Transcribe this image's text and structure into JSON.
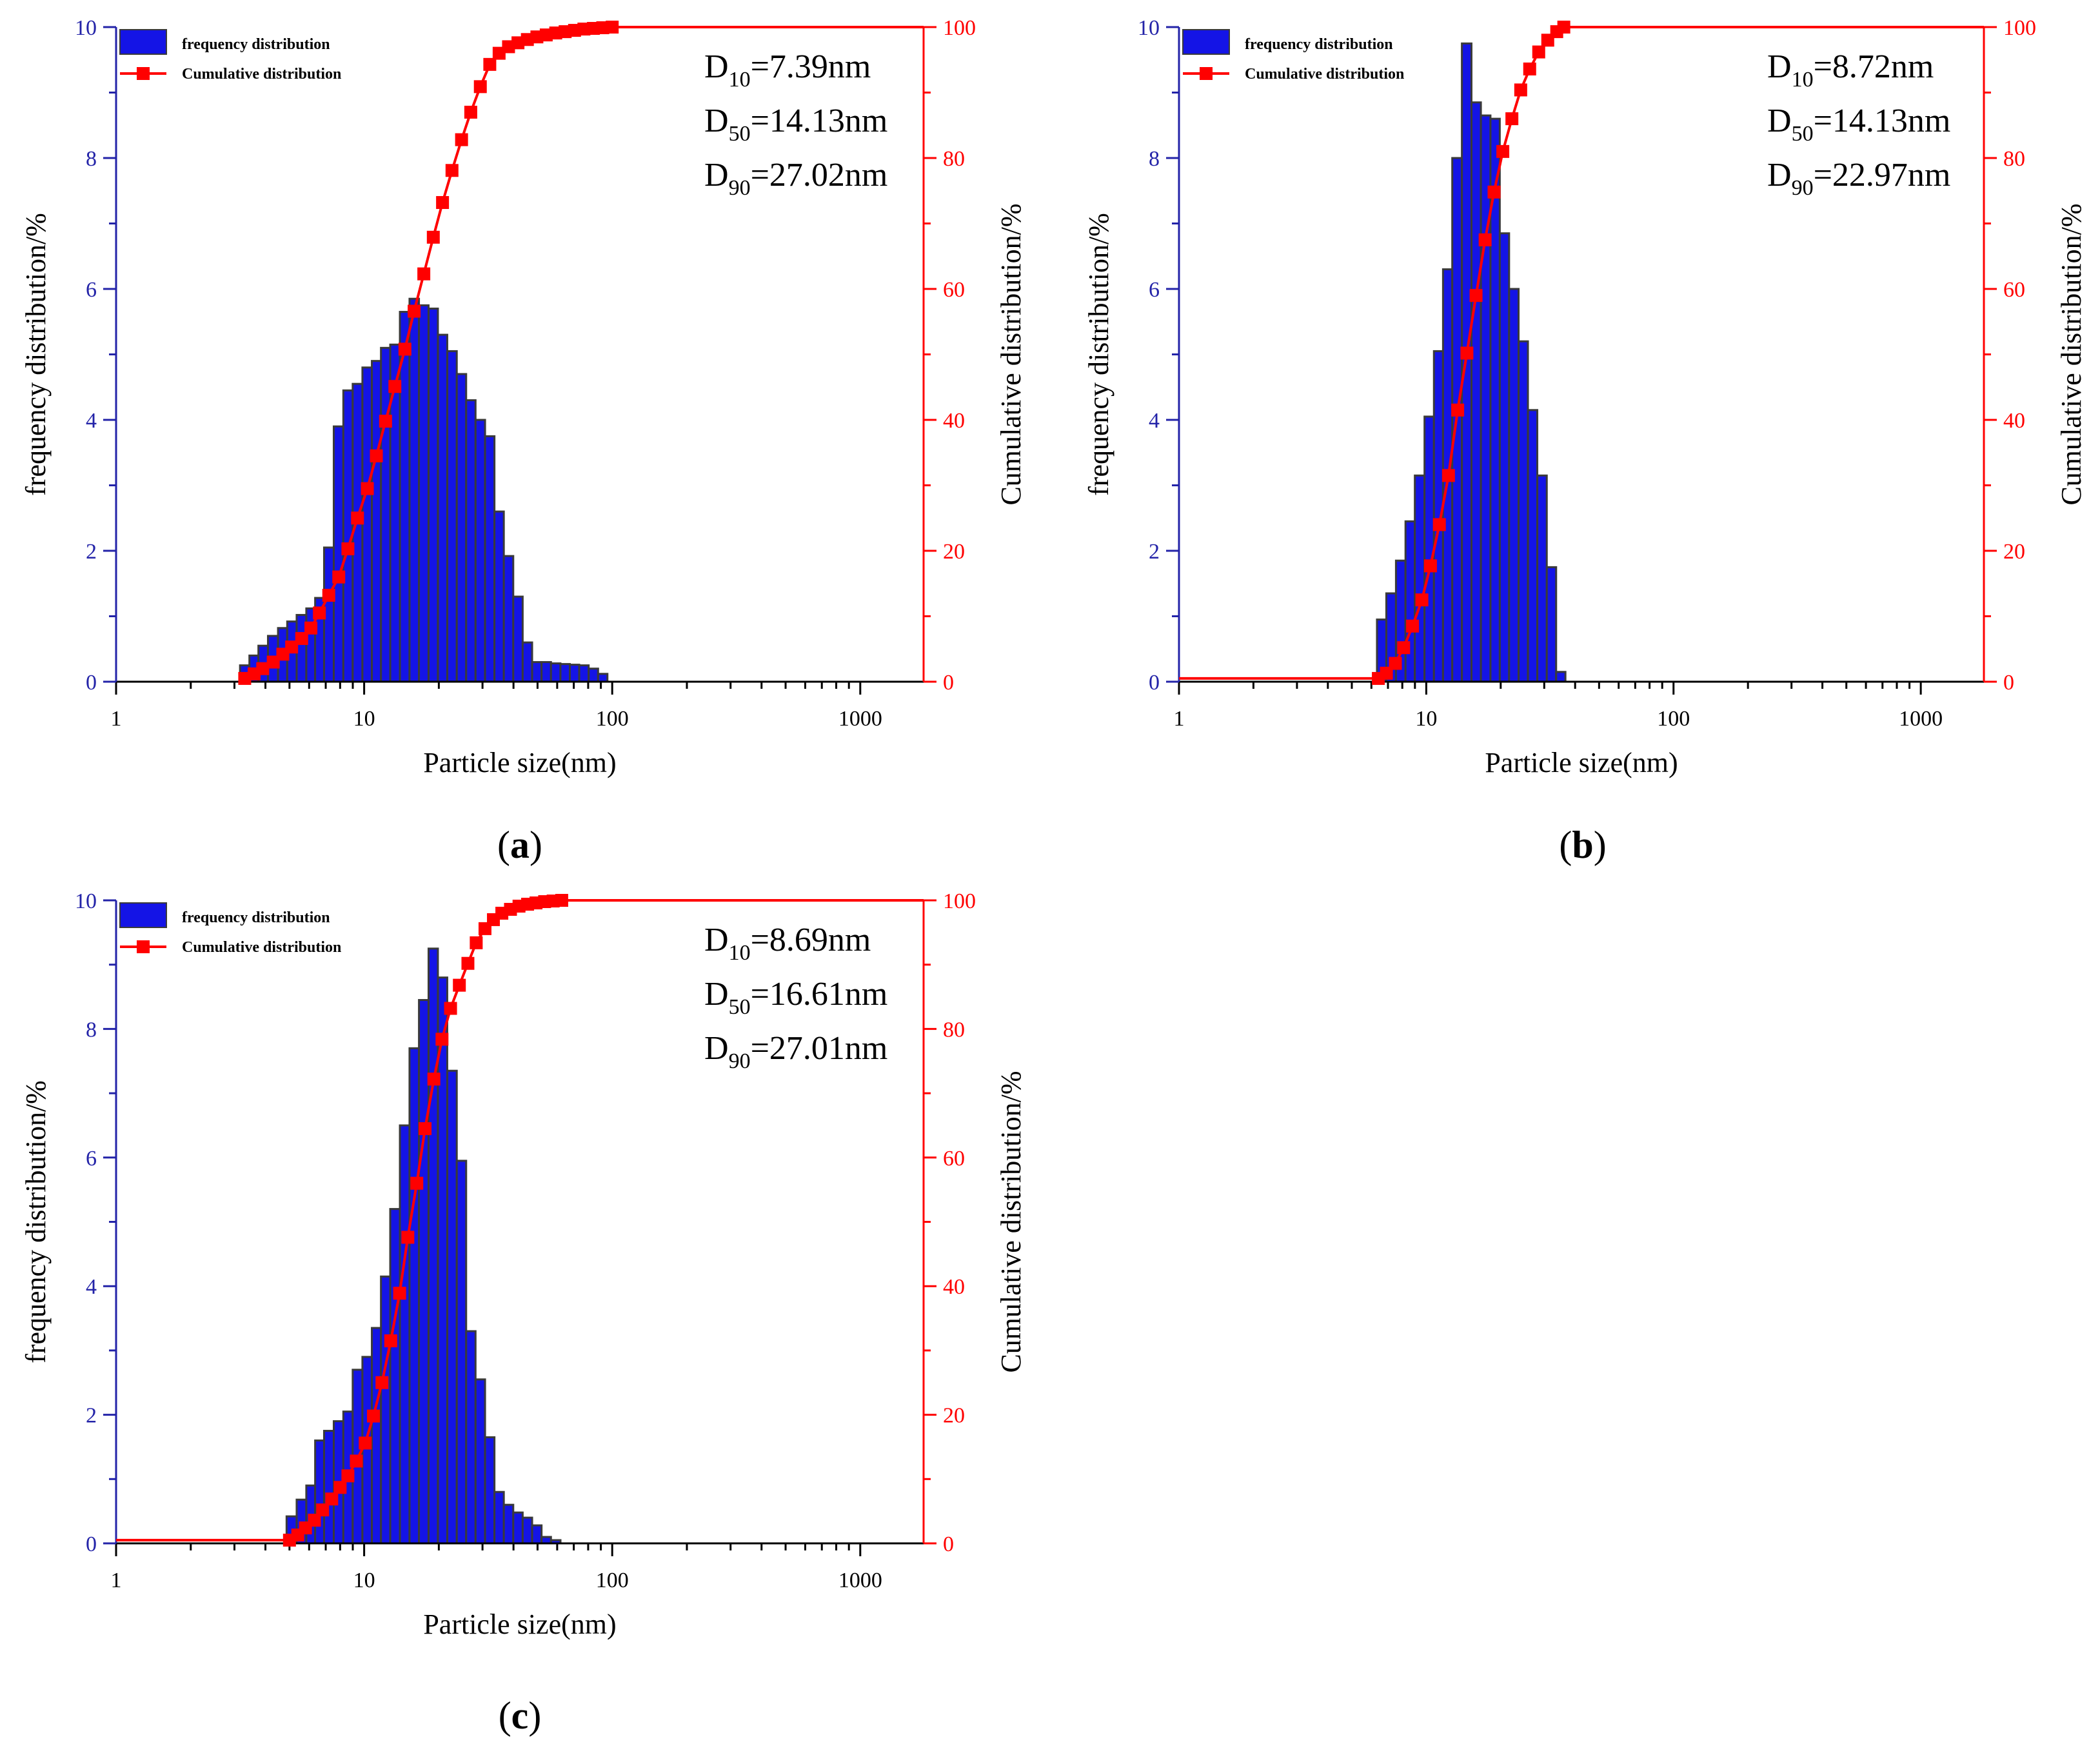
{
  "colors": {
    "bar_fill": "#1414e6",
    "bar_edge": "#3a3a3a",
    "cumulative": "#ff0000",
    "left_axis": "#2323a8",
    "right_axis": "#ff0000",
    "text": "#000000"
  },
  "chart_data": [
    {
      "id": "a",
      "type": "bar+line",
      "caption": "(a)",
      "xlabel": "Particle size(nm)",
      "ylabel": "frequency distribution/%",
      "y2label": "Cumulative distribution/%",
      "xscale": "log",
      "xlim": [
        1,
        1800
      ],
      "ylim": [
        0,
        10
      ],
      "y2lim": [
        0,
        100
      ],
      "xticks": [
        "1",
        "10",
        "100",
        "1000"
      ],
      "yticks": [
        "0",
        "2",
        "4",
        "6",
        "8",
        "10"
      ],
      "y2ticks": [
        "0",
        "20",
        "40",
        "60",
        "80",
        "100"
      ],
      "legend": {
        "position": "top-left",
        "entries": [
          "frequency distribution",
          "Cumulative distribution"
        ]
      },
      "annotations": [
        {
          "base": "D",
          "sub": "10",
          "rest": "=7.39nm"
        },
        {
          "base": "D",
          "sub": "50",
          "rest": "=14.13nm"
        },
        {
          "base": "D",
          "sub": "90",
          "rest": "=27.02nm"
        }
      ],
      "bars": {
        "x": [
          3.3,
          3.6,
          3.9,
          4.3,
          4.7,
          5.1,
          5.6,
          6.1,
          6.6,
          7.2,
          7.9,
          8.6,
          9.4,
          10.3,
          11.2,
          12.2,
          13.3,
          14.6,
          15.9,
          17.4,
          19.0,
          20.7,
          22.6,
          24.7,
          26.9,
          29.4,
          32.1,
          35.0,
          38.2,
          41.7,
          45.5,
          49.7,
          54.2,
          59.2,
          64.6,
          70.5,
          76.9,
          84.0,
          91.6
        ],
        "values": [
          0.25,
          0.4,
          0.55,
          0.7,
          0.82,
          0.92,
          1.02,
          1.12,
          1.28,
          2.05,
          3.9,
          4.45,
          4.55,
          4.8,
          4.9,
          5.1,
          5.15,
          5.65,
          5.85,
          5.75,
          5.7,
          5.3,
          5.05,
          4.7,
          4.3,
          4.0,
          3.75,
          2.6,
          1.92,
          1.3,
          0.6,
          0.3,
          0.3,
          0.28,
          0.27,
          0.26,
          0.25,
          0.2,
          0.12
        ]
      },
      "cumulative": {
        "x": [
          3.3,
          3.6,
          3.9,
          4.3,
          4.7,
          5.1,
          5.6,
          6.1,
          6.6,
          7.2,
          7.9,
          8.6,
          9.4,
          10.3,
          11.2,
          12.2,
          13.3,
          14.6,
          15.9,
          17.4,
          19.0,
          20.7,
          22.6,
          24.7,
          26.9,
          29.4,
          32.1,
          35.0,
          38.2,
          41.7,
          45.5,
          49.7,
          54.2,
          59.2,
          64.6,
          70.5,
          76.9,
          84.0,
          91.6,
          100,
          1800
        ],
        "values": [
          0.5,
          1.2,
          2.0,
          3.0,
          4.2,
          5.3,
          6.6,
          8.2,
          10.5,
          13.2,
          16.0,
          20.3,
          25.0,
          29.5,
          34.5,
          39.8,
          45.1,
          50.8,
          56.6,
          62.3,
          67.9,
          73.2,
          78.1,
          82.8,
          87.0,
          90.9,
          94.3,
          96.0,
          97.0,
          97.6,
          98.1,
          98.5,
          98.8,
          99.1,
          99.3,
          99.5,
          99.7,
          99.8,
          99.9,
          100,
          100
        ]
      }
    },
    {
      "id": "b",
      "type": "bar+line",
      "caption": "(b)",
      "xlabel": "Particle size(nm)",
      "ylabel": "frequency distribution/%",
      "y2label": "Cumulative distribution/%",
      "xscale": "log",
      "xlim": [
        1,
        1800
      ],
      "ylim": [
        0,
        10
      ],
      "y2lim": [
        0,
        100
      ],
      "xticks": [
        "1",
        "10",
        "100",
        "1000"
      ],
      "yticks": [
        "0",
        "2",
        "4",
        "6",
        "8",
        "10"
      ],
      "y2ticks": [
        "0",
        "20",
        "40",
        "60",
        "80",
        "100"
      ],
      "legend": {
        "position": "top-left",
        "entries": [
          "frequency distribution",
          "Cumulative distribution"
        ]
      },
      "annotations": [
        {
          "base": "D",
          "sub": "10",
          "rest": "=8.72nm"
        },
        {
          "base": "D",
          "sub": "50",
          "rest": "=14.13nm"
        },
        {
          "base": "D",
          "sub": "90",
          "rest": "=22.97nm"
        }
      ],
      "bars": {
        "x": [
          6.6,
          7.2,
          7.9,
          8.6,
          9.4,
          10.3,
          11.2,
          12.2,
          13.3,
          14.6,
          15.9,
          17.4,
          19.0,
          20.7,
          22.6,
          24.7,
          26.9,
          29.4,
          32.1,
          35.0
        ],
        "values": [
          0.95,
          1.35,
          1.85,
          2.45,
          3.15,
          4.05,
          5.05,
          6.3,
          8.0,
          9.75,
          8.85,
          8.65,
          8.6,
          6.85,
          6.0,
          5.2,
          4.15,
          3.15,
          1.75,
          0.15
        ]
      },
      "cumulative": {
        "x": [
          1,
          6.4,
          6.9,
          7.5,
          8.1,
          8.8,
          9.6,
          10.4,
          11.3,
          12.3,
          13.4,
          14.6,
          15.9,
          17.3,
          18.8,
          20.4,
          22.2,
          24.1,
          26.2,
          28.5,
          31.0,
          33.7,
          36.0,
          1800
        ],
        "values": [
          0.5,
          0.5,
          1.3,
          2.8,
          5.2,
          8.5,
          12.5,
          17.7,
          24.0,
          31.5,
          41.5,
          50.2,
          59.0,
          67.5,
          74.8,
          81.0,
          86.0,
          90.4,
          93.6,
          96.2,
          98.0,
          99.3,
          100,
          100
        ]
      }
    },
    {
      "id": "c",
      "type": "bar+line",
      "caption": "(c)",
      "xlabel": "Particle size(nm)",
      "ylabel": "frequency distribution/%",
      "y2label": "Cumulative distribution/%",
      "xscale": "log",
      "xlim": [
        1,
        1800
      ],
      "ylim": [
        0,
        10
      ],
      "y2lim": [
        0,
        100
      ],
      "xticks": [
        "1",
        "10",
        "100",
        "1000"
      ],
      "yticks": [
        "0",
        "2",
        "4",
        "6",
        "8",
        "10"
      ],
      "y2ticks": [
        "0",
        "20",
        "40",
        "60",
        "80",
        "100"
      ],
      "legend": {
        "position": "top-left",
        "entries": [
          "frequency distribution",
          "Cumulative distribution"
        ]
      },
      "annotations": [
        {
          "base": "D",
          "sub": "10",
          "rest": "=8.69nm"
        },
        {
          "base": "D",
          "sub": "50",
          "rest": "=16.61nm"
        },
        {
          "base": "D",
          "sub": "90",
          "rest": "=27.01nm"
        }
      ],
      "bars": {
        "x": [
          5.1,
          5.6,
          6.1,
          6.6,
          7.2,
          7.9,
          8.6,
          9.4,
          10.3,
          11.2,
          12.2,
          13.3,
          14.6,
          15.9,
          17.4,
          19.0,
          20.7,
          22.6,
          24.7,
          26.9,
          29.4,
          32.1,
          35.0,
          38.2,
          41.7,
          45.5,
          49.7,
          54.2,
          59.2
        ],
        "values": [
          0.42,
          0.68,
          0.9,
          1.6,
          1.75,
          1.9,
          2.05,
          2.7,
          2.9,
          3.35,
          4.15,
          5.2,
          6.5,
          7.7,
          8.45,
          9.25,
          8.8,
          7.35,
          5.95,
          3.3,
          2.55,
          1.65,
          0.8,
          0.6,
          0.48,
          0.4,
          0.28,
          0.1,
          0.05
        ]
      },
      "cumulative": {
        "x": [
          1,
          5.0,
          5.4,
          5.8,
          6.3,
          6.8,
          7.4,
          8.0,
          8.6,
          9.3,
          10.1,
          10.9,
          11.8,
          12.8,
          13.9,
          15.0,
          16.3,
          17.6,
          19.1,
          20.6,
          22.3,
          24.2,
          26.2,
          28.3,
          30.7,
          33.2,
          35.9,
          38.9,
          42.1,
          45.6,
          49.3,
          53.4,
          57.8,
          62.6,
          1800
        ],
        "values": [
          0.5,
          0.5,
          1.3,
          2.4,
          3.6,
          5.2,
          6.9,
          8.7,
          10.5,
          12.8,
          15.6,
          19.8,
          25.0,
          31.5,
          38.9,
          47.6,
          56.0,
          64.5,
          72.2,
          78.4,
          83.2,
          86.8,
          90.2,
          93.4,
          95.6,
          97.0,
          98.0,
          98.6,
          99.1,
          99.4,
          99.6,
          99.8,
          99.9,
          100,
          100
        ]
      }
    }
  ]
}
